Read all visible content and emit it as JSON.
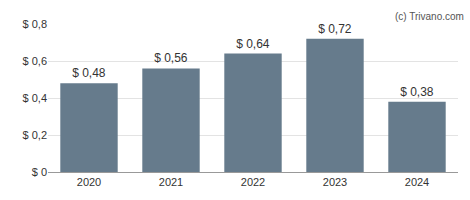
{
  "chart_data": {
    "type": "bar",
    "categories": [
      "2020",
      "2021",
      "2022",
      "2023",
      "2024"
    ],
    "values": [
      0.48,
      0.56,
      0.64,
      0.72,
      0.38
    ],
    "value_labels": [
      "$ 0,48",
      "$ 0,56",
      "$ 0,64",
      "$ 0,72",
      "$ 0,38"
    ],
    "data_labels": true,
    "color": "#667b8c",
    "ylim": [
      0,
      0.8
    ],
    "yticks": [
      {
        "value": 0,
        "label": "$ 0"
      },
      {
        "value": 0.2,
        "label": "$ 0,2"
      },
      {
        "value": 0.4,
        "label": "$ 0,4"
      },
      {
        "value": 0.6,
        "label": "$ 0,6"
      },
      {
        "value": 0.8,
        "label": "$ 0,8"
      }
    ],
    "grid": true,
    "annotations": [
      "(c) Trivano.com"
    ]
  }
}
